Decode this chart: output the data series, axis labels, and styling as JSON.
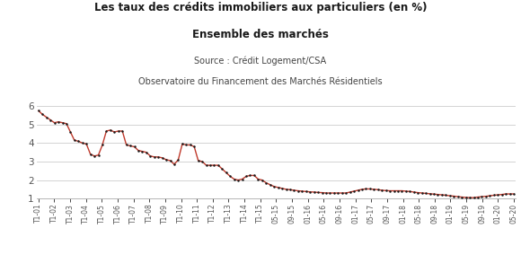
{
  "title_line1": "Les taux des crédits immobiliers aux particuliers (en %)",
  "title_line2": "Ensemble des marchés",
  "source_line1": "Source : Crédit Logement/CSA",
  "source_line2": "Observatoire du Financement des Marchés Résidentiels",
  "ylim": [
    1,
    6
  ],
  "yticks": [
    1,
    2,
    3,
    4,
    5,
    6
  ],
  "line_color": "#c0392b",
  "dot_color": "#1a1a1a",
  "bg_color": "#ffffff",
  "grid_color": "#cccccc",
  "title_color": "#1a1a1a",
  "source_color": "#444444",
  "xtick_labels": [
    "T1-01",
    "T1-02",
    "T1-03",
    "T1-04",
    "T1-05",
    "T1-06",
    "T1-07",
    "T1-08",
    "T1-09",
    "T1-10",
    "T1-11",
    "T1-12",
    "T1-13",
    "T1-14",
    "T1-15",
    "05-15",
    "09-15",
    "01-16",
    "05-16",
    "09-16",
    "01-17",
    "05-17",
    "09-17",
    "01-18",
    "05-18",
    "09-18",
    "01-19",
    "05-19",
    "09-19",
    "01-20",
    "05-20"
  ],
  "values": [
    5.75,
    5.55,
    5.4,
    5.25,
    5.1,
    5.15,
    5.1,
    5.05,
    4.6,
    4.15,
    4.1,
    4.0,
    3.95,
    3.4,
    3.3,
    3.35,
    3.9,
    4.65,
    4.7,
    4.6,
    4.65,
    4.65,
    3.9,
    3.85,
    3.8,
    3.6,
    3.55,
    3.5,
    3.3,
    3.25,
    3.25,
    3.2,
    3.1,
    3.05,
    2.85,
    3.1,
    3.95,
    3.9,
    3.9,
    3.8,
    3.05,
    3.0,
    2.8,
    2.8,
    2.8,
    2.8,
    2.6,
    2.4,
    2.2,
    2.05,
    2.0,
    2.05,
    2.2,
    2.25,
    2.25,
    2.05,
    2.0,
    1.85,
    1.75,
    1.65,
    1.6,
    1.55,
    1.5,
    1.48,
    1.45,
    1.42,
    1.4,
    1.38,
    1.36,
    1.35,
    1.33,
    1.32,
    1.3,
    1.3,
    1.3,
    1.3,
    1.3,
    1.3,
    1.35,
    1.4,
    1.45,
    1.5,
    1.52,
    1.52,
    1.5,
    1.48,
    1.45,
    1.43,
    1.42,
    1.42,
    1.42,
    1.42,
    1.4,
    1.38,
    1.35,
    1.32,
    1.3,
    1.28,
    1.26,
    1.24,
    1.22,
    1.2,
    1.18,
    1.15,
    1.13,
    1.1,
    1.08,
    1.06,
    1.05,
    1.05,
    1.08,
    1.1,
    1.12,
    1.15,
    1.18,
    1.2,
    1.22,
    1.25,
    1.25,
    1.25
  ]
}
